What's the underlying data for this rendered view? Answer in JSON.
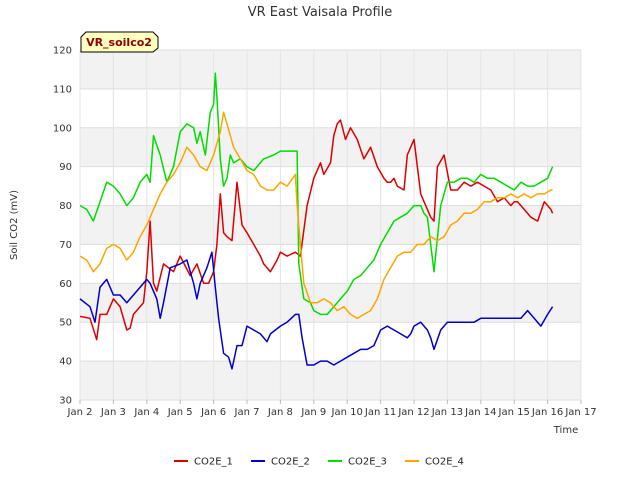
{
  "chart_data": {
    "type": "line",
    "title": "VR East Vaisala Profile",
    "xlabel": "Time",
    "ylabel": "Soil CO2 (mV)",
    "badge": "VR_soilco2",
    "xlim": [
      2,
      17
    ],
    "ylim": [
      30,
      120
    ],
    "grid": true,
    "legend_position": "bottom-center",
    "x_ticks": [
      {
        "value": 2,
        "label": "Jan 2"
      },
      {
        "value": 3,
        "label": "Jan 3"
      },
      {
        "value": 4,
        "label": "Jan 4"
      },
      {
        "value": 5,
        "label": "Jan 5"
      },
      {
        "value": 6,
        "label": "Jan 6"
      },
      {
        "value": 7,
        "label": "Jan 7"
      },
      {
        "value": 8,
        "label": "Jan 8"
      },
      {
        "value": 9,
        "label": "Jan 9"
      },
      {
        "value": 10,
        "label": "Jan 10"
      },
      {
        "value": 11,
        "label": "Jan 11"
      },
      {
        "value": 12,
        "label": "Jan 12"
      },
      {
        "value": 13,
        "label": "Jan 13"
      },
      {
        "value": 14,
        "label": "Jan 14"
      },
      {
        "value": 15,
        "label": "Jan 15"
      },
      {
        "value": 16,
        "label": "Jan 16"
      },
      {
        "value": 17,
        "label": "Jan 17"
      }
    ],
    "y_ticks": [
      30,
      40,
      50,
      60,
      70,
      80,
      90,
      100,
      110,
      120
    ],
    "series": [
      {
        "name": "CO2E_1",
        "color": "#dd0000",
        "x": [
          2.0,
          2.3,
          2.5,
          2.6,
          2.8,
          3.0,
          3.2,
          3.4,
          3.5,
          3.6,
          3.9,
          4.0,
          4.1,
          4.2,
          4.3,
          4.5,
          4.8,
          5.0,
          5.3,
          5.5,
          5.7,
          5.85,
          6.0,
          6.1,
          6.2,
          6.3,
          6.4,
          6.55,
          6.7,
          6.85,
          7.0,
          7.2,
          7.4,
          7.5,
          7.7,
          7.9,
          8.0,
          8.2,
          8.45,
          8.6,
          8.8,
          9.0,
          9.2,
          9.3,
          9.5,
          9.6,
          9.7,
          9.8,
          9.95,
          10.1,
          10.3,
          10.5,
          10.7,
          10.9,
          11.1,
          11.2,
          11.3,
          11.4,
          11.5,
          11.7,
          11.8,
          12.0,
          12.2,
          12.4,
          12.5,
          12.6,
          12.7,
          12.9,
          13.1,
          13.3,
          13.5,
          13.7,
          13.9,
          14.1,
          14.3,
          14.5,
          14.7,
          14.9,
          15.0,
          15.1,
          15.3,
          15.5,
          15.7,
          15.9,
          16.1,
          16.15
        ],
        "y": [
          51.5,
          51,
          45.5,
          52,
          52,
          56,
          54,
          48,
          48.5,
          52,
          55,
          63,
          76,
          60,
          58,
          65,
          63,
          67,
          62,
          65,
          60,
          60,
          63,
          70,
          83,
          73,
          72,
          71,
          86,
          75,
          73,
          70,
          67,
          65,
          63,
          66,
          68,
          67,
          68,
          67,
          80,
          87,
          91,
          88,
          91,
          98,
          101,
          102,
          97,
          100,
          97,
          92,
          95,
          90,
          87,
          86,
          86,
          87,
          85,
          84,
          93,
          97,
          83,
          79,
          77,
          76,
          90,
          93,
          84,
          84,
          86,
          85,
          86,
          85,
          84,
          81,
          82,
          80,
          81,
          81,
          79,
          77,
          76,
          81,
          79,
          78
        ]
      },
      {
        "name": "CO2E_2",
        "color": "#0000cc",
        "x": [
          2.0,
          2.3,
          2.45,
          2.6,
          2.8,
          3.0,
          3.2,
          3.4,
          3.5,
          3.7,
          4.0,
          4.1,
          4.3,
          4.4,
          4.5,
          4.7,
          5.0,
          5.2,
          5.4,
          5.5,
          5.6,
          5.8,
          5.95,
          6.05,
          6.15,
          6.3,
          6.45,
          6.55,
          6.7,
          6.85,
          7.0,
          7.2,
          7.4,
          7.6,
          7.7,
          8.0,
          8.2,
          8.45,
          8.55,
          8.65,
          8.8,
          9.0,
          9.2,
          9.4,
          9.6,
          9.8,
          10.0,
          10.2,
          10.4,
          10.6,
          10.8,
          11.0,
          11.2,
          11.4,
          11.6,
          11.8,
          11.9,
          12.0,
          12.2,
          12.4,
          12.5,
          12.6,
          12.8,
          13.0,
          13.2,
          13.5,
          13.8,
          14.0,
          14.2,
          14.4,
          14.6,
          14.8,
          15.0,
          15.2,
          15.4,
          15.6,
          15.8,
          16.0,
          16.15
        ],
        "y": [
          56,
          54,
          50,
          59,
          61,
          57,
          57,
          55,
          56,
          58,
          61,
          60,
          56,
          51,
          55,
          64,
          65,
          66,
          60,
          56,
          60,
          64,
          68,
          59,
          51,
          42,
          41,
          38,
          44,
          44,
          49,
          48,
          47,
          45,
          47,
          49,
          50,
          52,
          52,
          46,
          39,
          39,
          40,
          40,
          39,
          40,
          41,
          42,
          43,
          43,
          44,
          48,
          49,
          48,
          47,
          46,
          47,
          49,
          50,
          48,
          46,
          43,
          48,
          50,
          50,
          50,
          50,
          51,
          51,
          51,
          51,
          51,
          51,
          51,
          53,
          51,
          49,
          52,
          54
        ]
      },
      {
        "name": "CO2E_3",
        "color": "#00dd00",
        "x": [
          2.0,
          2.2,
          2.4,
          2.6,
          2.8,
          3.0,
          3.2,
          3.4,
          3.6,
          3.8,
          4.0,
          4.1,
          4.2,
          4.4,
          4.6,
          4.8,
          5.0,
          5.2,
          5.4,
          5.5,
          5.6,
          5.75,
          5.9,
          6.0,
          6.05,
          6.1,
          6.2,
          6.3,
          6.4,
          6.5,
          6.6,
          6.8,
          7.0,
          7.2,
          7.5,
          7.8,
          8.0,
          8.2,
          8.5,
          8.55,
          8.7,
          8.9,
          9.0,
          9.2,
          9.4,
          9.6,
          9.8,
          10.0,
          10.2,
          10.4,
          10.6,
          10.8,
          11.0,
          11.2,
          11.4,
          11.6,
          11.8,
          12.0,
          12.2,
          12.3,
          12.4,
          12.6,
          12.8,
          13.0,
          13.2,
          13.4,
          13.6,
          13.8,
          14.0,
          14.2,
          14.4,
          14.6,
          14.8,
          15.0,
          15.2,
          15.4,
          15.6,
          15.8,
          16.0,
          16.15
        ],
        "y": [
          80,
          79,
          76,
          81,
          86,
          85,
          83,
          80,
          82,
          86,
          88,
          86,
          98,
          93,
          86,
          90,
          99,
          101,
          100,
          96,
          99,
          93,
          104,
          106,
          114,
          108,
          92,
          85,
          87,
          93,
          91,
          92,
          90,
          89,
          92,
          93,
          94,
          94,
          94,
          65,
          56,
          55,
          53,
          52,
          52,
          54,
          56,
          58,
          61,
          62,
          64,
          66,
          70,
          73,
          76,
          77,
          78,
          80,
          80,
          78,
          77,
          63,
          80,
          86,
          86,
          87,
          87,
          86,
          88,
          87,
          87,
          86,
          85,
          84,
          86,
          85,
          85,
          86,
          87,
          90
        ]
      },
      {
        "name": "CO2E_4",
        "color": "#ffa500",
        "x": [
          2.0,
          2.2,
          2.4,
          2.6,
          2.8,
          3.0,
          3.2,
          3.4,
          3.6,
          3.8,
          4.0,
          4.2,
          4.4,
          4.6,
          4.8,
          5.0,
          5.2,
          5.4,
          5.6,
          5.8,
          6.0,
          6.2,
          6.3,
          6.4,
          6.6,
          6.8,
          7.0,
          7.2,
          7.4,
          7.6,
          7.8,
          8.0,
          8.2,
          8.45,
          8.5,
          8.6,
          8.7,
          8.9,
          9.1,
          9.3,
          9.5,
          9.7,
          9.9,
          10.1,
          10.3,
          10.5,
          10.7,
          10.9,
          11.1,
          11.3,
          11.5,
          11.7,
          11.9,
          12.1,
          12.3,
          12.5,
          12.7,
          12.9,
          13.1,
          13.3,
          13.5,
          13.7,
          13.9,
          14.1,
          14.3,
          14.5,
          14.7,
          14.9,
          15.1,
          15.3,
          15.5,
          15.7,
          15.9,
          16.1,
          16.15
        ],
        "y": [
          67,
          66,
          63,
          65,
          69,
          70,
          69,
          66,
          68,
          72,
          75,
          79,
          83,
          86,
          88,
          91,
          95,
          93,
          90,
          89,
          93,
          99,
          104,
          101,
          95,
          92,
          89,
          88,
          85,
          84,
          84,
          86,
          85,
          88,
          80,
          70,
          60,
          55,
          55,
          56,
          55,
          53,
          54,
          52,
          51,
          52,
          53,
          56,
          61,
          64,
          67,
          68,
          68,
          70,
          70,
          72,
          71,
          72,
          75,
          76,
          78,
          78,
          79,
          81,
          81,
          82,
          82,
          83,
          82,
          83,
          82,
          83,
          83,
          84,
          84
        ]
      }
    ]
  }
}
